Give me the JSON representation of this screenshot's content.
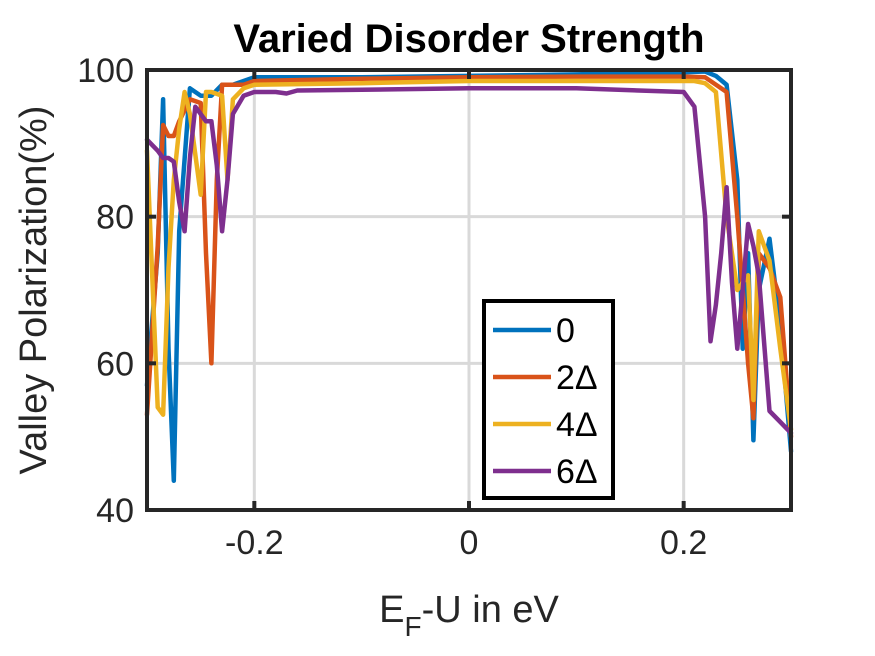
{
  "chart_data": {
    "type": "line",
    "title": "Varied Disorder Strength",
    "xlabel_main": "E",
    "xlabel_sub": "F",
    "xlabel_rest": "-U in eV",
    "ylabel": "Valley Polarization(%)",
    "xlim": [
      -0.3,
      0.3
    ],
    "ylim": [
      40,
      100
    ],
    "xticks": [
      -0.2,
      0,
      0.2
    ],
    "xtick_labels": [
      "-0.2",
      "0",
      "0.2"
    ],
    "yticks": [
      40,
      60,
      80,
      100
    ],
    "ytick_labels": [
      "40",
      "60",
      "80",
      "100"
    ],
    "grid": true,
    "legend_position": "bottom-center",
    "series": [
      {
        "name": "0",
        "color": "#0072BD",
        "x": [
          -0.3,
          -0.29,
          -0.285,
          -0.28,
          -0.275,
          -0.27,
          -0.26,
          -0.25,
          -0.24,
          -0.23,
          -0.22,
          -0.21,
          -0.2,
          -0.1,
          0,
          0.1,
          0.2,
          0.22,
          0.23,
          0.24,
          0.25,
          0.255,
          0.26,
          0.265,
          0.27,
          0.28,
          0.29,
          0.3
        ],
        "y": [
          57,
          75,
          96,
          62,
          44,
          78,
          97.5,
          96.5,
          96.5,
          98,
          98,
          98.5,
          99,
          99,
          99.2,
          99.4,
          99.7,
          99.8,
          99.2,
          98,
          85,
          62,
          75,
          49.5,
          70,
          77,
          65,
          48
        ]
      },
      {
        "name": "2Δ",
        "color": "#D95319",
        "x": [
          -0.3,
          -0.29,
          -0.285,
          -0.28,
          -0.275,
          -0.27,
          -0.26,
          -0.25,
          -0.245,
          -0.24,
          -0.235,
          -0.23,
          -0.22,
          -0.21,
          -0.2,
          -0.1,
          0,
          0.1,
          0.2,
          0.22,
          0.23,
          0.24,
          0.25,
          0.255,
          0.26,
          0.265,
          0.27,
          0.28,
          0.29,
          0.3
        ],
        "y": [
          53,
          76,
          92.5,
          91,
          91,
          93,
          96,
          95.5,
          75,
          60,
          85,
          98,
          98,
          98,
          98.5,
          98.8,
          99,
          99.1,
          99.1,
          99,
          98,
          97,
          80,
          70,
          60,
          52.5,
          75,
          73,
          69,
          50
        ]
      },
      {
        "name": "4Δ",
        "color": "#EDB120",
        "x": [
          -0.3,
          -0.29,
          -0.285,
          -0.28,
          -0.275,
          -0.27,
          -0.265,
          -0.26,
          -0.25,
          -0.245,
          -0.24,
          -0.23,
          -0.225,
          -0.22,
          -0.21,
          -0.2,
          -0.1,
          0,
          0.1,
          0.2,
          0.21,
          0.22,
          0.23,
          0.24,
          0.25,
          0.255,
          0.26,
          0.265,
          0.27,
          0.28,
          0.29,
          0.3
        ],
        "y": [
          89,
          54,
          53,
          73,
          85,
          92,
          97,
          94,
          83,
          97,
          97,
          96.5,
          85,
          96,
          97.5,
          98,
          98.2,
          98.5,
          98.5,
          98.5,
          98.5,
          98.2,
          97,
          80,
          70,
          71,
          72,
          55,
          78,
          74,
          62,
          51
        ]
      },
      {
        "name": "6Δ",
        "color": "#7E2F8E",
        "x": [
          -0.3,
          -0.29,
          -0.285,
          -0.28,
          -0.275,
          -0.27,
          -0.265,
          -0.26,
          -0.255,
          -0.25,
          -0.245,
          -0.24,
          -0.235,
          -0.23,
          -0.225,
          -0.22,
          -0.21,
          -0.2,
          -0.19,
          -0.18,
          -0.17,
          -0.16,
          -0.1,
          0,
          0.1,
          0.2,
          0.21,
          0.22,
          0.225,
          0.23,
          0.235,
          0.24,
          0.245,
          0.25,
          0.255,
          0.26,
          0.265,
          0.27,
          0.28,
          0.29,
          0.3
        ],
        "y": [
          90.5,
          89,
          88,
          88,
          87.5,
          82,
          78,
          88,
          95,
          94,
          93,
          93,
          87,
          78,
          85,
          94,
          96.5,
          97,
          97,
          97,
          96.8,
          97.2,
          97.3,
          97.5,
          97.5,
          97,
          95,
          80,
          63,
          68,
          75,
          84,
          71,
          62,
          70,
          79,
          76,
          72,
          53.5,
          52,
          50.5
        ]
      }
    ]
  }
}
